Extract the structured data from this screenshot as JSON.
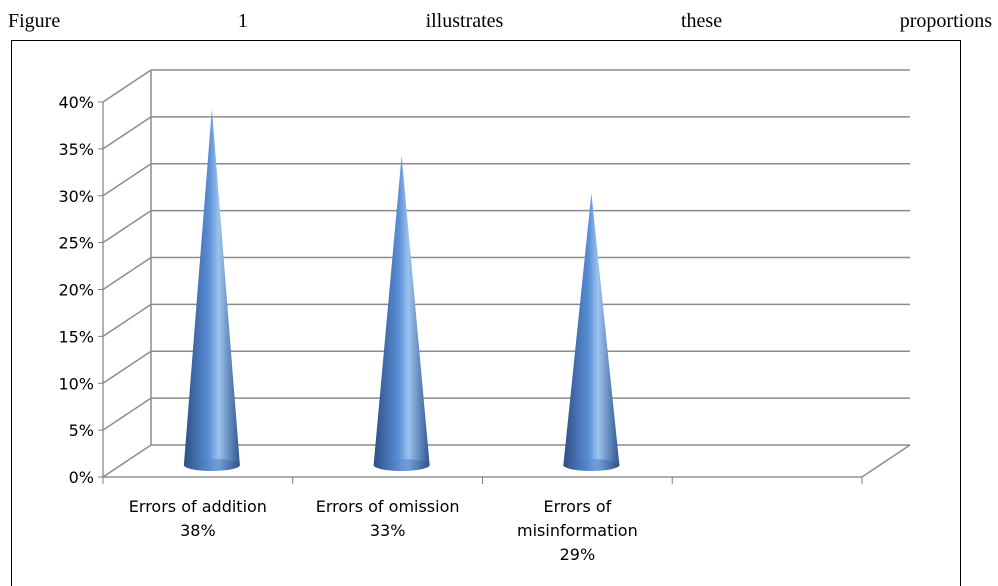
{
  "caption": {
    "words": [
      "Figure",
      "1",
      "illustrates",
      "these",
      "proportions"
    ]
  },
  "chart_data": {
    "type": "bar",
    "shape": "cone",
    "categories": [
      [
        "Errors of addition",
        "38%"
      ],
      [
        "Errors of omission",
        "33%"
      ],
      [
        "Errors of",
        "misinformation",
        "29%"
      ]
    ],
    "values": [
      38,
      33,
      29
    ],
    "ylim": [
      0,
      40
    ],
    "y_ticks": [
      "0%",
      "5%",
      "10%",
      "15%",
      "20%",
      "25%",
      "30%",
      "35%",
      "40%"
    ],
    "grid": true,
    "legend": "none",
    "colors": {
      "cone_dark": "#2d4f86",
      "cone_mid": "#5a8fd6",
      "cone_light": "#9cc3ef",
      "gridline": "#8c8c8c",
      "axis": "#7f7f7f"
    }
  }
}
